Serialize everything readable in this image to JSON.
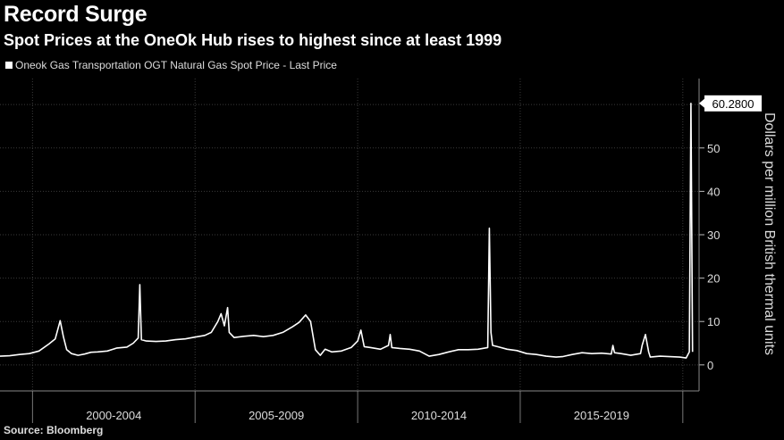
{
  "header": {
    "title": "Record Surge",
    "subtitle": "Spot Prices at the OneOk Hub rises to highest since at least 1999"
  },
  "legend": {
    "label": "Oneok Gas Transportation OGT Natural Gas Spot Price - Last Price"
  },
  "footer": {
    "source": "Source: Bloomberg"
  },
  "colors": {
    "background": "#000000",
    "line": "#ffffff",
    "grid": "#3a3a3a"
  },
  "chart_data": {
    "type": "line",
    "title": "Spot Prices at the OneOk Hub rises to highest since at least 1999",
    "ylabel": "Dollars per million British thermal units",
    "ylim": [
      -6,
      66
    ],
    "xlim": [
      1999.0,
      2020.5
    ],
    "yticks": [
      0,
      10,
      20,
      30,
      40,
      50
    ],
    "ytick_labels": [
      "0",
      "10",
      "20",
      "30",
      "40",
      "50"
    ],
    "x_periods": [
      {
        "label": "2000-2004",
        "start": 2000,
        "end": 2005
      },
      {
        "label": "2005-2009",
        "start": 2005,
        "end": 2010
      },
      {
        "label": "2010-2014",
        "start": 2010,
        "end": 2015
      },
      {
        "label": "2015-2019",
        "start": 2015,
        "end": 2020
      }
    ],
    "last_value": 60.28,
    "last_value_label": "60.2800",
    "grid": true,
    "legend_position": "top-left",
    "series": [
      {
        "name": "Oneok Gas Transportation OGT Natural Gas Spot Price - Last Price",
        "x": [
          1999.0,
          1999.3,
          1999.6,
          1999.9,
          2000.2,
          2000.5,
          2000.7,
          2000.85,
          2000.95,
          2001.05,
          2001.2,
          2001.4,
          2001.6,
          2001.8,
          2002.0,
          2002.3,
          2002.6,
          2002.9,
          2003.1,
          2003.25,
          2003.3,
          2003.35,
          2003.5,
          2003.8,
          2004.1,
          2004.4,
          2004.7,
          2005.0,
          2005.3,
          2005.5,
          2005.7,
          2005.8,
          2005.9,
          2006.0,
          2006.05,
          2006.2,
          2006.5,
          2006.8,
          2007.1,
          2007.4,
          2007.7,
          2008.0,
          2008.2,
          2008.4,
          2008.55,
          2008.7,
          2008.85,
          2009.0,
          2009.2,
          2009.5,
          2009.8,
          2010.0,
          2010.1,
          2010.2,
          2010.4,
          2010.7,
          2010.95,
          2011.0,
          2011.05,
          2011.3,
          2011.6,
          2011.9,
          2012.2,
          2012.5,
          2012.8,
          2013.1,
          2013.4,
          2013.7,
          2014.0,
          2014.05,
          2014.1,
          2014.15,
          2014.3,
          2014.6,
          2014.9,
          2015.2,
          2015.5,
          2015.8,
          2016.1,
          2016.3,
          2016.6,
          2016.9,
          2017.2,
          2017.5,
          2017.8,
          2017.85,
          2017.9,
          2018.1,
          2018.4,
          2018.7,
          2018.75,
          2018.85,
          2018.95,
          2019.0,
          2019.3,
          2019.6,
          2019.9,
          2020.1,
          2020.2,
          2020.25,
          2020.3
        ],
        "values": [
          2.0,
          2.1,
          2.4,
          2.6,
          3.2,
          4.8,
          6.0,
          10.2,
          6.5,
          3.5,
          2.6,
          2.2,
          2.5,
          2.9,
          3.0,
          3.2,
          3.9,
          4.1,
          5.0,
          6.2,
          18.5,
          5.8,
          5.5,
          5.4,
          5.5,
          5.8,
          6.0,
          6.4,
          6.8,
          7.5,
          10.0,
          11.8,
          9.0,
          13.2,
          7.5,
          6.3,
          6.6,
          6.8,
          6.5,
          6.8,
          7.5,
          8.8,
          9.8,
          11.5,
          10.0,
          3.5,
          2.2,
          3.6,
          3.0,
          3.2,
          4.0,
          5.5,
          8.0,
          4.2,
          4.0,
          3.6,
          4.5,
          7.0,
          4.0,
          3.8,
          3.6,
          3.2,
          2.0,
          2.4,
          3.0,
          3.5,
          3.5,
          3.6,
          4.0,
          31.5,
          7.5,
          4.5,
          4.2,
          3.6,
          3.3,
          2.6,
          2.4,
          2.0,
          1.8,
          1.9,
          2.4,
          2.8,
          2.6,
          2.7,
          2.5,
          4.5,
          2.8,
          2.6,
          2.2,
          2.6,
          4.5,
          7.0,
          3.0,
          1.8,
          2.0,
          1.9,
          1.8,
          1.6,
          3.0,
          60.28,
          3.0
        ]
      }
    ]
  }
}
